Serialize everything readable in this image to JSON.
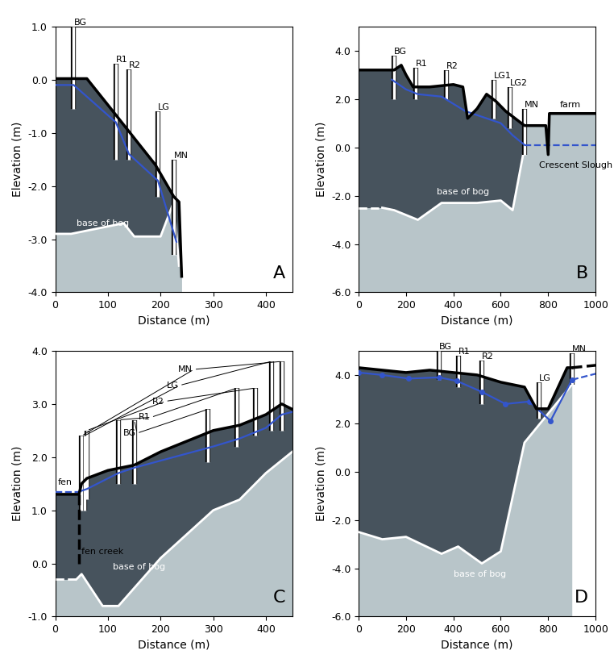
{
  "chart_data": [
    {
      "type": "line",
      "panel": "A",
      "xlabel": "Distance (m)",
      "ylabel": "Elevation (m)",
      "xlim": [
        0,
        450
      ],
      "xticks": [
        0,
        100,
        200,
        300,
        400
      ],
      "ylim": [
        -4,
        1
      ],
      "yticks": [
        {
          "value": -4,
          "label": "-4.0"
        },
        {
          "value": -3,
          "label": "-3.0"
        },
        {
          "value": -2,
          "label": "-2.0"
        },
        {
          "value": -1,
          "label": "-1.0"
        },
        {
          "value": 0,
          "label": "0.0"
        },
        {
          "value": 1,
          "label": "1.0"
        }
      ],
      "surface": [
        {
          "x": [
            0,
            60,
            110,
            150,
            190,
            225,
            235,
            240
          ],
          "values": [
            0.02,
            0.02,
            -0.6,
            -1.1,
            -1.6,
            -2.2,
            -2.3,
            -3.7
          ],
          "color": "#000000",
          "line_style": "solid"
        }
      ],
      "water_table": [
        {
          "x": [
            0,
            35,
            115,
            140,
            195,
            230
          ],
          "values": [
            -0.1,
            -0.1,
            -0.8,
            -1.4,
            -1.9,
            -3.05
          ],
          "color": "#3355cc",
          "line_style": "solid"
        }
      ],
      "base": [
        {
          "x": [
            0,
            30,
            130,
            150,
            200,
            225,
            235
          ],
          "values": [
            -2.9,
            -2.9,
            -2.7,
            -2.95,
            -2.95,
            -2.3,
            -3.5
          ],
          "color": "#ffffff",
          "line_style": "solid"
        }
      ],
      "wells": [
        {
          "label": "BG",
          "x": [
            35
          ],
          "top": [
            1.0
          ],
          "bottom": [
            -0.55
          ]
        },
        {
          "label": "R1",
          "x": [
            115
          ],
          "top": [
            0.3
          ],
          "bottom": [
            -1.5
          ]
        },
        {
          "label": "R2",
          "x": [
            140
          ],
          "top": [
            0.2
          ],
          "bottom": [
            -1.5
          ]
        },
        {
          "label": "LG",
          "x": [
            195
          ],
          "top": [
            -0.6
          ],
          "bottom": [
            -2.2
          ]
        },
        {
          "label": "MN",
          "x": [
            225
          ],
          "top": [
            -1.5
          ],
          "bottom": [
            -3.3
          ]
        }
      ],
      "annotations": [
        {
          "text": "base of bog",
          "x": 40,
          "y": -2.78
        }
      ]
    },
    {
      "type": "line",
      "panel": "B",
      "xlabel": "Distance (m)",
      "ylabel": "Elevation (m)",
      "xlim": [
        0,
        1000
      ],
      "xticks": [
        0,
        200,
        400,
        600,
        800,
        1000
      ],
      "ylim": [
        -6,
        5
      ],
      "yticks": [
        {
          "value": -6,
          "label": "-6.0"
        },
        {
          "value": -4,
          "label": "-4.0"
        },
        {
          "value": -2,
          "label": "-2.0"
        },
        {
          "value": 0,
          "label": "0.0"
        },
        {
          "value": 2,
          "label": "2.0"
        },
        {
          "value": 4,
          "label": "4.0"
        }
      ],
      "surface": [
        {
          "x": [
            0,
            50,
            150,
            180,
            200,
            230,
            300,
            400,
            440,
            460,
            500,
            540,
            580,
            620,
            660,
            700,
            740,
            790,
            800,
            805,
            1000
          ],
          "values": [
            3.2,
            3.2,
            3.2,
            3.4,
            3.0,
            2.5,
            2.5,
            2.6,
            2.5,
            1.2,
            1.6,
            2.2,
            1.9,
            1.5,
            1.2,
            0.9,
            0.9,
            0.9,
            -0.3,
            1.4,
            1.4
          ],
          "color": "#000000",
          "line_style": "solid"
        }
      ],
      "water_table": [
        {
          "x": [
            140,
            200,
            250,
            350,
            450,
            600,
            650,
            700
          ],
          "values": [
            2.8,
            2.4,
            2.2,
            2.1,
            1.5,
            1.0,
            0.5,
            0.1
          ],
          "color": "#3355cc",
          "line_style": "solid"
        },
        {
          "x": [
            700,
            1000
          ],
          "values": [
            0.1,
            0.1
          ],
          "color": "#3355cc",
          "line_style": "dashed"
        }
      ],
      "base": [
        {
          "x": [
            0,
            100
          ],
          "values": [
            -2.5,
            -2.5
          ],
          "color": "#ffffff",
          "line_style": "dashed"
        },
        {
          "x": [
            100,
            150,
            250,
            350,
            500,
            600,
            650,
            700
          ],
          "values": [
            -2.5,
            -2.6,
            -3.0,
            -2.3,
            -2.3,
            -2.2,
            -2.6,
            0.0
          ],
          "color": "#ffffff",
          "line_style": "solid"
        }
      ],
      "wells": [
        {
          "label": "BG",
          "x": [
            150
          ],
          "top": [
            3.8
          ],
          "bottom": [
            2.0
          ]
        },
        {
          "label": "R1",
          "x": [
            240
          ],
          "top": [
            3.3
          ],
          "bottom": [
            2.0
          ]
        },
        {
          "label": "R2",
          "x": [
            370
          ],
          "top": [
            3.2
          ],
          "bottom": [
            2.0
          ]
        },
        {
          "label": "LG1",
          "x": [
            570
          ],
          "top": [
            2.8
          ],
          "bottom": [
            1.2
          ]
        },
        {
          "label": "LG2",
          "x": [
            640
          ],
          "top": [
            2.5
          ],
          "bottom": [
            0.8
          ]
        },
        {
          "label": "MN",
          "x": [
            700
          ],
          "top": [
            1.6
          ],
          "bottom": [
            -0.3
          ]
        }
      ],
      "annotations": [
        {
          "text": "base of bog",
          "x": 330,
          "y": -2.0
        },
        {
          "text": "farm",
          "x": 850,
          "y": 1.6
        },
        {
          "text": "Crescent Slough",
          "x": 760,
          "y": -0.9
        }
      ]
    },
    {
      "type": "line",
      "panel": "C",
      "xlabel": "Distance (m)",
      "ylabel": "Elevation (m)",
      "xlim": [
        0,
        450
      ],
      "xticks": [
        0,
        100,
        200,
        300,
        400
      ],
      "ylim": [
        -1,
        4
      ],
      "yticks": [
        {
          "value": -1,
          "label": "-1.0"
        },
        {
          "value": 0,
          "label": "0.0"
        },
        {
          "value": 1,
          "label": "1.0"
        },
        {
          "value": 2,
          "label": "2.0"
        },
        {
          "value": 3,
          "label": "3.0"
        },
        {
          "value": 4,
          "label": "4.0"
        }
      ],
      "surface": [
        {
          "x": [
            0,
            45,
            50,
            60,
            100,
            150,
            200,
            250,
            300,
            350,
            400,
            430,
            450
          ],
          "values": [
            1.3,
            1.3,
            1.5,
            1.6,
            1.75,
            1.85,
            2.1,
            2.3,
            2.5,
            2.6,
            2.8,
            3.0,
            2.9
          ],
          "color": "#000000",
          "line_style": "solid"
        },
        {
          "x": [
            45,
            45
          ],
          "values": [
            1.3,
            0.0
          ],
          "color": "#000000",
          "line_style": "dashed"
        }
      ],
      "water_table": [
        {
          "x": [
            0,
            45
          ],
          "values": [
            1.35,
            1.35
          ],
          "color": "#3355cc",
          "line_style": "dashed"
        },
        {
          "x": [
            45,
            60,
            120,
            150,
            300,
            350,
            400,
            430,
            450
          ],
          "values": [
            1.35,
            1.4,
            1.7,
            1.8,
            2.2,
            2.35,
            2.55,
            2.8,
            2.85
          ],
          "color": "#3355cc",
          "line_style": "solid"
        }
      ],
      "base": [
        {
          "x": [
            0,
            40
          ],
          "values": [
            -0.3,
            -0.3
          ],
          "color": "#ffffff",
          "line_style": "dashed"
        },
        {
          "x": [
            40,
            50,
            60,
            90,
            120,
            200,
            300,
            350,
            400,
            450
          ],
          "values": [
            -0.3,
            -0.2,
            -0.35,
            -0.8,
            -0.8,
            0.1,
            1.0,
            1.2,
            1.7,
            2.1
          ],
          "color": "#ffffff",
          "line_style": "solid"
        }
      ],
      "wells": [
        {
          "label": "MN",
          "x": [
            50,
            430
          ],
          "top": [
            2.4,
            3.8
          ],
          "bottom": [
            1.0,
            2.5
          ]
        },
        {
          "label": "LG",
          "x": [
            55,
            410
          ],
          "top": [
            2.4,
            3.8
          ],
          "bottom": [
            1.0,
            2.5
          ]
        },
        {
          "label": "R2",
          "x": [
            60,
            380
          ],
          "top": [
            2.5,
            3.3
          ],
          "bottom": [
            1.2,
            2.4
          ]
        },
        {
          "label": "R1",
          "x": [
            120,
            345
          ],
          "top": [
            2.7,
            3.3
          ],
          "bottom": [
            1.5,
            2.2
          ]
        },
        {
          "label": "BG",
          "x": [
            150,
            290
          ],
          "top": [
            2.7,
            2.9
          ],
          "bottom": [
            1.5,
            1.9
          ]
        }
      ],
      "annotations": [
        {
          "text": "fen",
          "x": 5,
          "y": 1.45
        },
        {
          "text": "fen creek",
          "x": 50,
          "y": 0.15
        },
        {
          "text": "base of bog",
          "x": 110,
          "y": -0.15
        }
      ]
    },
    {
      "type": "line",
      "panel": "D",
      "xlabel": "Distance (m)",
      "ylabel": "Elevation (m)",
      "xlim": [
        0,
        1000
      ],
      "xticks": [
        0,
        200,
        400,
        600,
        800,
        1000
      ],
      "ylim": [
        -6,
        5
      ],
      "yticks": [
        {
          "value": -6,
          "label": "-6.0"
        },
        {
          "value": -4,
          "label": "-4.0"
        },
        {
          "value": -2,
          "label": "-2.0"
        },
        {
          "value": 0,
          "label": "0.0"
        },
        {
          "value": 2,
          "label": "2.0"
        },
        {
          "value": 4,
          "label": "4.0"
        }
      ],
      "surface": [
        {
          "x": [
            0,
            100,
            200,
            300,
            400,
            500,
            600,
            700,
            750,
            800,
            880,
            900
          ],
          "values": [
            4.3,
            4.2,
            4.1,
            4.2,
            4.1,
            4.0,
            3.7,
            3.5,
            2.6,
            2.6,
            4.3,
            4.3
          ],
          "color": "#000000",
          "line_style": "solid"
        },
        {
          "x": [
            900,
            1000
          ],
          "values": [
            4.3,
            4.4
          ],
          "color": "#000000",
          "line_style": "dashed"
        }
      ],
      "water_table": [
        {
          "x": [
            0,
            100,
            210,
            340,
            415,
            520,
            620,
            720,
            810,
            900
          ],
          "values": [
            4.1,
            4.0,
            3.85,
            3.9,
            3.75,
            3.3,
            2.8,
            2.9,
            2.1,
            3.8
          ],
          "color": "#3355cc",
          "line_style": "solid",
          "marker": "circle"
        },
        {
          "x": [
            900,
            1000
          ],
          "values": [
            3.8,
            4.05
          ],
          "color": "#3355cc",
          "line_style": "dashed"
        }
      ],
      "base": [
        {
          "x": [
            0,
            100,
            200,
            350,
            420,
            520,
            600,
            700,
            800,
            900
          ],
          "values": [
            -2.5,
            -2.8,
            -2.7,
            -3.4,
            -3.1,
            -3.8,
            -3.3,
            1.2,
            2.4,
            3.6
          ],
          "color": "#ffffff",
          "line_style": "solid"
        }
      ],
      "wells": [
        {
          "label": "BG",
          "x": [
            340
          ],
          "top": [
            5.0
          ],
          "bottom": [
            3.8
          ]
        },
        {
          "label": "R1",
          "x": [
            420
          ],
          "top": [
            4.8
          ],
          "bottom": [
            3.5
          ]
        },
        {
          "label": "R2",
          "x": [
            520
          ],
          "top": [
            4.6
          ],
          "bottom": [
            2.8
          ]
        },
        {
          "label": "LG",
          "x": [
            760
          ],
          "top": [
            3.7
          ],
          "bottom": [
            2.2
          ]
        },
        {
          "label": "MN",
          "x": [
            900
          ],
          "top": [
            4.9
          ],
          "bottom": [
            3.6
          ]
        }
      ],
      "annotations": [
        {
          "text": "base of bog",
          "x": 400,
          "y": -4.4
        }
      ]
    }
  ]
}
